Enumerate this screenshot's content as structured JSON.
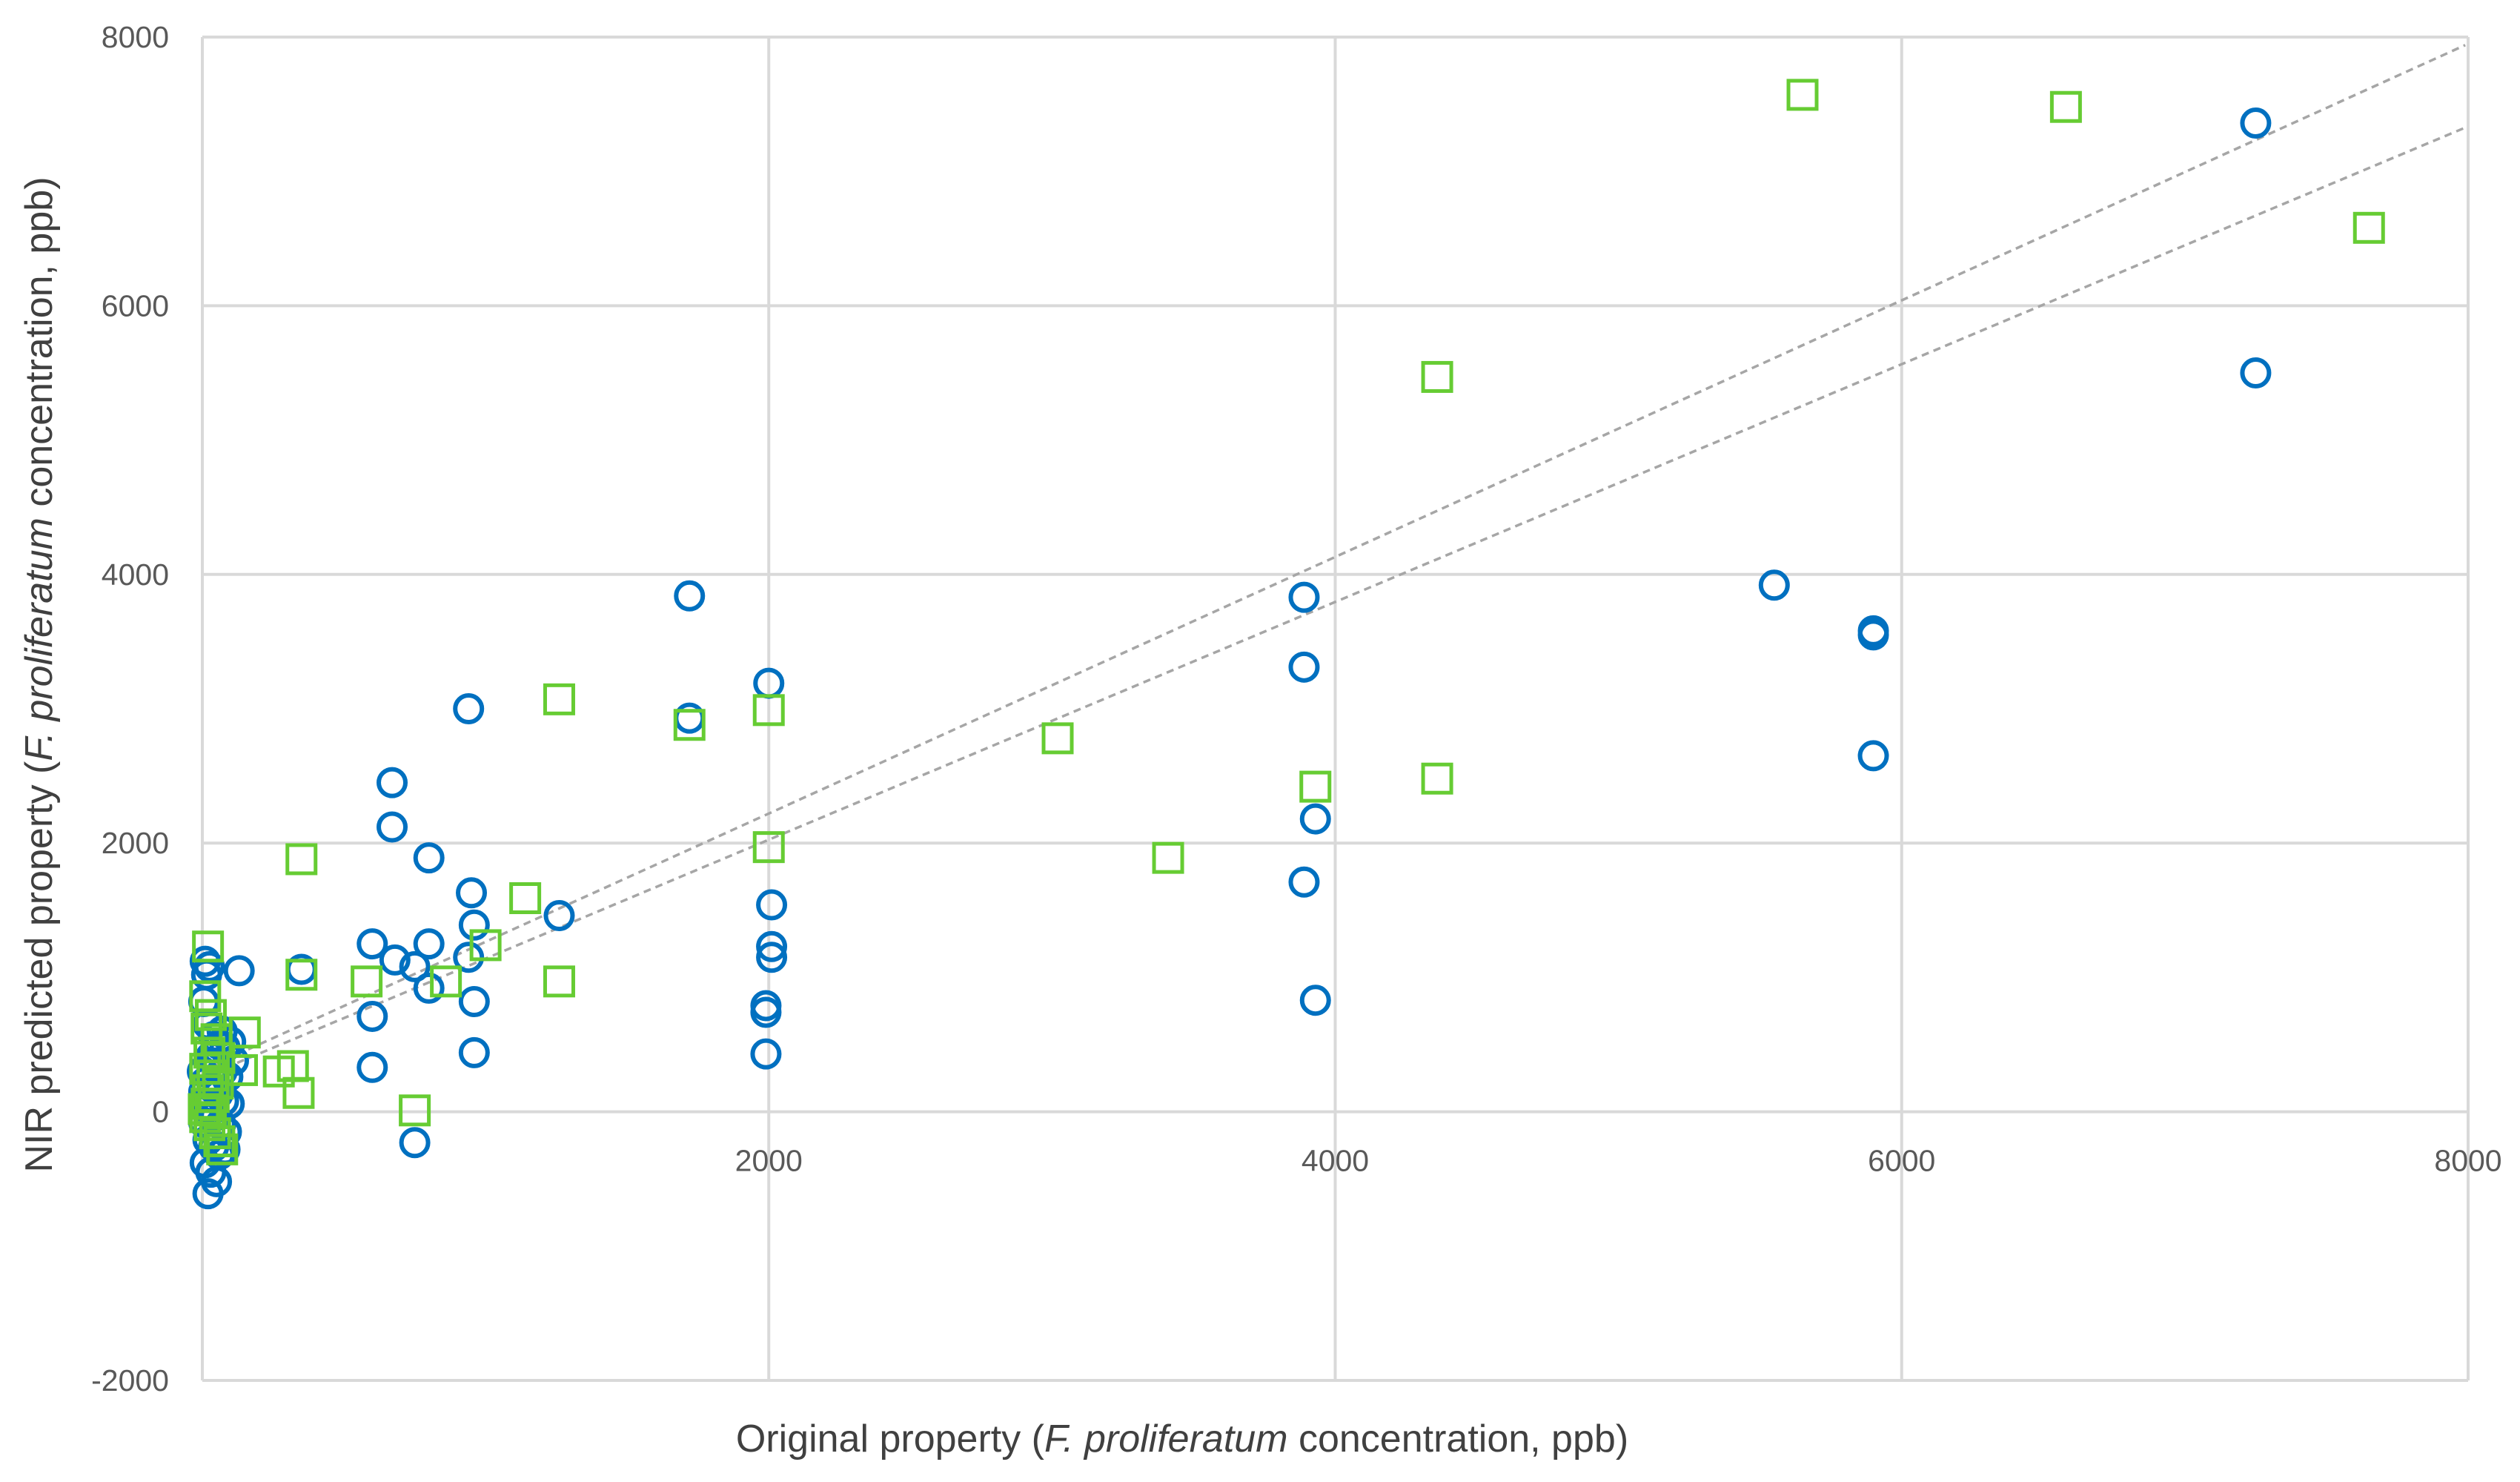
{
  "chart_data": {
    "type": "scatter",
    "title": "",
    "xlabel_parts": [
      "Original property (",
      "F. proliferatum",
      " concentration, ppb)"
    ],
    "ylabel_parts": [
      "NIR predicted property (",
      "F. proliferatum",
      " concentration, ppb)"
    ],
    "xlim": [
      0,
      8000
    ],
    "ylim": [
      -2000,
      8000
    ],
    "x_ticks": [
      "2000",
      "4000",
      "6000",
      "8000"
    ],
    "y_ticks": [
      "-2000",
      "0",
      "2000",
      "4000",
      "6000",
      "8000"
    ],
    "grid": true,
    "colors": {
      "circle": "#0070c0",
      "square": "#66cc33",
      "trend": "#a6a6a6"
    },
    "trendlines": [
      {
        "slope": 0.955,
        "intercept": 310
      },
      {
        "slope": 0.885,
        "intercept": 255
      }
    ],
    "series": [
      {
        "marker": "circle",
        "points": [
          [
            7250,
            7360
          ],
          [
            7250,
            5500
          ],
          [
            5550,
            3920
          ],
          [
            5900,
            3580
          ],
          [
            5900,
            3550
          ],
          [
            5900,
            2650
          ],
          [
            3890,
            3830
          ],
          [
            3890,
            3310
          ],
          [
            3930,
            2180
          ],
          [
            3890,
            1710
          ],
          [
            3930,
            830
          ],
          [
            2000,
            3190
          ],
          [
            2010,
            1540
          ],
          [
            2010,
            1230
          ],
          [
            2010,
            1150
          ],
          [
            1990,
            790
          ],
          [
            1990,
            740
          ],
          [
            1990,
            430
          ],
          [
            1720,
            3840
          ],
          [
            1720,
            2930
          ],
          [
            940,
            3000
          ],
          [
            1260,
            1460
          ],
          [
            950,
            1630
          ],
          [
            960,
            1390
          ],
          [
            960,
            820
          ],
          [
            960,
            440
          ],
          [
            940,
            1150
          ],
          [
            670,
            2450
          ],
          [
            670,
            2120
          ],
          [
            800,
            1890
          ],
          [
            800,
            1250
          ],
          [
            800,
            920
          ],
          [
            750,
            1080
          ],
          [
            680,
            1130
          ],
          [
            600,
            1250
          ],
          [
            600,
            710
          ],
          [
            600,
            330
          ],
          [
            750,
            -230
          ],
          [
            350,
            1060
          ],
          [
            130,
            1050
          ],
          [
            10,
            1120
          ],
          [
            25,
            1080
          ],
          [
            15,
            1020
          ],
          [
            5,
            820
          ],
          [
            20,
            650
          ],
          [
            40,
            560
          ],
          [
            60,
            500
          ],
          [
            80,
            480
          ],
          [
            30,
            410
          ],
          [
            50,
            350
          ],
          [
            70,
            300
          ],
          [
            90,
            260
          ],
          [
            10,
            220
          ],
          [
            35,
            180
          ],
          [
            55,
            130
          ],
          [
            75,
            80
          ],
          [
            15,
            30
          ],
          [
            45,
            -30
          ],
          [
            65,
            -90
          ],
          [
            85,
            -150
          ],
          [
            20,
            -210
          ],
          [
            40,
            -260
          ],
          [
            60,
            -320
          ],
          [
            80,
            -280
          ],
          [
            10,
            -380
          ],
          [
            30,
            -450
          ],
          [
            50,
            -520
          ],
          [
            20,
            -610
          ],
          [
            5,
            -80
          ],
          [
            25,
            40
          ],
          [
            95,
            60
          ],
          [
            110,
            380
          ],
          [
            100,
            520
          ],
          [
            70,
            600
          ],
          [
            0,
            300
          ],
          [
            5,
            150
          ]
        ]
      },
      {
        "marker": "square",
        "points": [
          [
            5650,
            7570
          ],
          [
            6580,
            7480
          ],
          [
            7650,
            6580
          ],
          [
            4360,
            5470
          ],
          [
            4360,
            2480
          ],
          [
            3930,
            2420
          ],
          [
            3020,
            2780
          ],
          [
            3410,
            1890
          ],
          [
            2000,
            2990
          ],
          [
            2000,
            1970
          ],
          [
            1720,
            2880
          ],
          [
            1260,
            3070
          ],
          [
            1140,
            1590
          ],
          [
            1260,
            970
          ],
          [
            1000,
            1240
          ],
          [
            860,
            970
          ],
          [
            580,
            970
          ],
          [
            350,
            1880
          ],
          [
            350,
            1020
          ],
          [
            340,
            140
          ],
          [
            320,
            340
          ],
          [
            270,
            300
          ],
          [
            150,
            590
          ],
          [
            140,
            310
          ],
          [
            750,
            10
          ],
          [
            20,
            1230
          ],
          [
            10,
            860
          ],
          [
            30,
            720
          ],
          [
            15,
            620
          ],
          [
            50,
            540
          ],
          [
            25,
            440
          ],
          [
            60,
            400
          ],
          [
            10,
            320
          ],
          [
            35,
            270
          ],
          [
            55,
            210
          ],
          [
            20,
            160
          ],
          [
            40,
            110
          ],
          [
            15,
            60
          ],
          [
            30,
            10
          ],
          [
            10,
            -40
          ],
          [
            25,
            -100
          ],
          [
            45,
            -160
          ],
          [
            60,
            -220
          ],
          [
            70,
            -280
          ],
          [
            5,
            20
          ]
        ]
      }
    ]
  }
}
